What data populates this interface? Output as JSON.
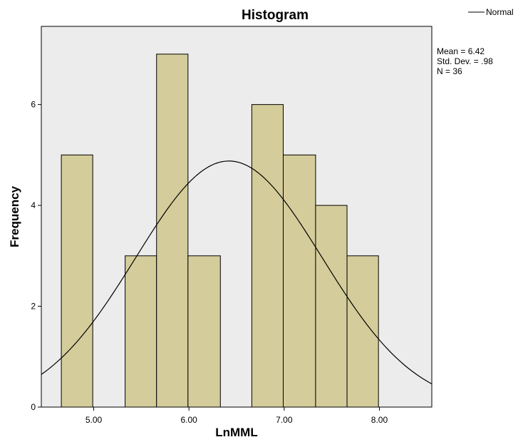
{
  "chart_data": {
    "type": "bar",
    "title": "Histogram",
    "xlabel": "LnMML",
    "ylabel": "Frequency",
    "bins": [
      {
        "x0": 4.66,
        "x1": 4.99,
        "count": 5
      },
      {
        "x0": 4.99,
        "x1": 5.33,
        "count": 0
      },
      {
        "x0": 5.33,
        "x1": 5.66,
        "count": 3
      },
      {
        "x0": 5.66,
        "x1": 5.99,
        "count": 7
      },
      {
        "x0": 5.99,
        "x1": 6.33,
        "count": 3
      },
      {
        "x0": 6.33,
        "x1": 6.66,
        "count": 0
      },
      {
        "x0": 6.66,
        "x1": 6.99,
        "count": 6
      },
      {
        "x0": 6.99,
        "x1": 7.33,
        "count": 5
      },
      {
        "x0": 7.33,
        "x1": 7.66,
        "count": 4
      },
      {
        "x0": 7.66,
        "x1": 7.99,
        "count": 3
      }
    ],
    "x_ticks": [
      5.0,
      6.0,
      7.0,
      8.0
    ],
    "x_tick_labels": [
      "5.00",
      "6.00",
      "7.00",
      "8.00"
    ],
    "y_ticks": [
      0,
      2,
      4,
      6
    ],
    "y_tick_labels": [
      "0",
      "2",
      "4",
      "6"
    ],
    "xlim": [
      4.45,
      8.55
    ],
    "ylim": [
      0,
      7.55
    ],
    "normal_curve": {
      "mean": 6.42,
      "std": 0.98,
      "n": 36,
      "bin_width": 0.333
    },
    "legend": [
      {
        "label": "Normal"
      }
    ],
    "legend_position": "top-right",
    "stats": {
      "mean": "Mean = 6.42",
      "std": "Std. Dev. = .98",
      "n": "N = 36"
    },
    "grid": false,
    "colors": {
      "bar_fill": "#d4cc9a",
      "bar_stroke": "#000000",
      "plot_background": "#ececec",
      "curve": "#000000"
    }
  }
}
